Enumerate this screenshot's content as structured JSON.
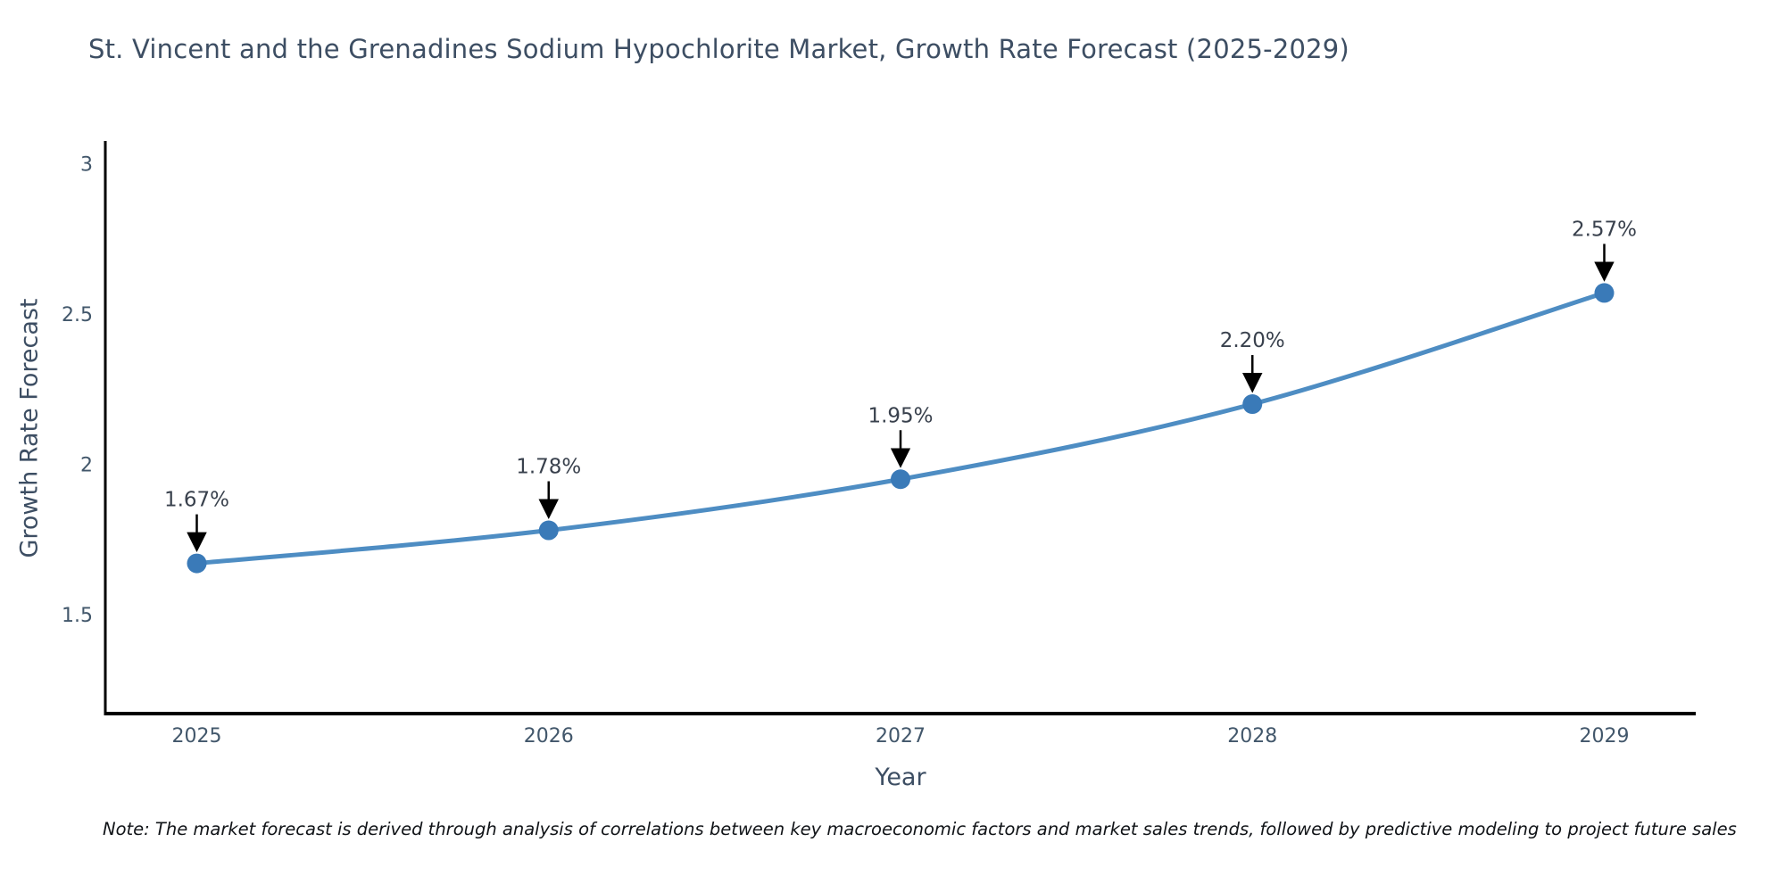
{
  "chart": {
    "note": "Note: The market forecast is derived through analysis of correlations between key macroeconomic factors and market sales trends, followed by predictive modeling to project future sales"
  },
  "chart_data": {
    "type": "line",
    "title": "St. Vincent and the Grenadines Sodium Hypochlorite Market, Growth Rate Forecast (2025-2029)",
    "xlabel": "Year",
    "ylabel": "Growth Rate Forecast",
    "x": [
      2025,
      2026,
      2027,
      2028,
      2029
    ],
    "values": [
      1.67,
      1.78,
      1.95,
      2.2,
      2.57
    ],
    "point_labels": [
      "1.67%",
      "1.78%",
      "1.95%",
      "2.20%",
      "2.57%"
    ],
    "x_tick_labels": [
      "2025",
      "2026",
      "2027",
      "2028",
      "2029"
    ],
    "y_ticks": [
      1.5,
      2,
      2.5,
      3
    ],
    "y_tick_labels": [
      "1.5",
      "2",
      "2.5",
      "3"
    ],
    "xlim": [
      2024.74,
      2029.26
    ],
    "ylim": [
      1.17,
      3.07
    ],
    "grid": false,
    "legend": "none",
    "line_shape": "spline",
    "line_color": "#4e8dc3",
    "marker_color": "#3a7ab8",
    "axis_line_color": "#000000",
    "annotation_arrow_color": "#000000",
    "tick_color": "#42576b",
    "title_color": "#3d4e63"
  }
}
